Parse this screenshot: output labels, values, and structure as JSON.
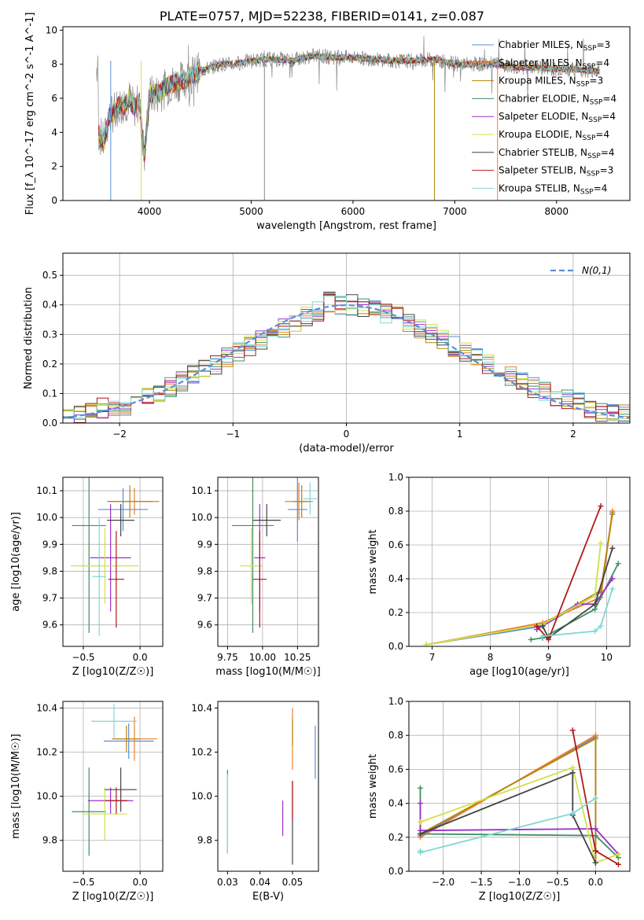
{
  "title": "PLATE=0757, MJD=52238, FIBERID=0141, z=0.087",
  "models": [
    {
      "name": "Chabrier MILES, N_SSP=3",
      "color": "#5b8dd6"
    },
    {
      "name": "Salpeter MILES, N_SSP=4",
      "color": "#ee7f2d"
    },
    {
      "name": "Kroupa MILES, N_SSP=3",
      "color": "#b8860b"
    },
    {
      "name": "Chabrier ELODIE, N_SSP=4",
      "color": "#3f8f62"
    },
    {
      "name": "Salpeter ELODIE, N_SSP=4",
      "color": "#9b30c9"
    },
    {
      "name": "Kroupa ELODIE, N_SSP=4",
      "color": "#d2e04a"
    },
    {
      "name": "Chabrier STELIB, N_SSP=4",
      "color": "#444444"
    },
    {
      "name": "Salpeter STELIB, N_SSP=3",
      "color": "#b01818"
    },
    {
      "name": "Kroupa STELIB, N_SSP=4",
      "color": "#7fd6d6"
    }
  ],
  "chart_data": [
    {
      "id": "spectrum",
      "type": "line",
      "xlabel": "wavelength [Angstrom, rest frame]",
      "ylabel": "Flux [f_λ 10^-17 erg cm^-2 s^-1 A^-1]",
      "xlim": [
        3150,
        8720
      ],
      "ylim": [
        0,
        10.2
      ],
      "xticks": [
        4000,
        5000,
        6000,
        7000,
        8000
      ],
      "yticks": [
        0,
        2,
        4,
        6,
        8,
        10
      ],
      "grid": false,
      "legend": "right",
      "x": [
        3500,
        3550,
        3600,
        3650,
        3700,
        3750,
        3800,
        3850,
        3900,
        3950,
        4000,
        4100,
        4200,
        4300,
        4400,
        4500,
        4600,
        4700,
        4800,
        4900,
        5000,
        5200,
        5400,
        5600,
        5800,
        6000,
        6200,
        6400,
        6600,
        6800,
        7000,
        7200,
        7400,
        7600,
        7800,
        8000,
        8200,
        8400
      ],
      "values": [
        4.0,
        3.4,
        4.8,
        5.2,
        5.6,
        5.5,
        6.0,
        5.4,
        5.8,
        2.5,
        6.2,
        6.3,
        6.8,
        7.0,
        7.3,
        7.6,
        7.8,
        8.0,
        8.0,
        8.1,
        8.2,
        8.3,
        8.2,
        8.5,
        8.4,
        8.4,
        8.3,
        8.2,
        8.2,
        8.3,
        8.0,
        8.0,
        8.0,
        7.8,
        7.8,
        7.7,
        7.7,
        7.6
      ]
    },
    {
      "id": "residuals",
      "type": "step",
      "xlabel": "(data-model)/error",
      "ylabel": "Normed distribution",
      "xlim": [
        -2.5,
        2.5
      ],
      "ylim": [
        0,
        0.575
      ],
      "xticks": [
        -2,
        -1,
        0,
        1,
        2
      ],
      "yticks": [
        0.0,
        0.1,
        0.2,
        0.3,
        0.4,
        0.5
      ],
      "grid": true,
      "legend": "top-right",
      "reference": {
        "name": "N(0,1)",
        "color": "#5b8dd6"
      },
      "bin_centers": [
        -2.45,
        -2.35,
        -2.25,
        -2.15,
        -2.05,
        -1.95,
        -1.85,
        -1.75,
        -1.65,
        -1.55,
        -1.45,
        -1.35,
        -1.25,
        -1.15,
        -1.05,
        -0.95,
        -0.85,
        -0.75,
        -0.65,
        -0.55,
        -0.45,
        -0.35,
        -0.25,
        -0.15,
        -0.05,
        0.05,
        0.15,
        0.25,
        0.35,
        0.45,
        0.55,
        0.65,
        0.75,
        0.85,
        0.95,
        1.05,
        1.15,
        1.25,
        1.35,
        1.45,
        1.55,
        1.65,
        1.75,
        1.85,
        1.95,
        2.05,
        2.15,
        2.25,
        2.35,
        2.45
      ],
      "values": [
        0.02,
        0.03,
        0.04,
        0.05,
        0.05,
        0.06,
        0.07,
        0.09,
        0.1,
        0.12,
        0.14,
        0.16,
        0.18,
        0.2,
        0.22,
        0.24,
        0.26,
        0.28,
        0.3,
        0.32,
        0.34,
        0.36,
        0.38,
        0.41,
        0.4,
        0.4,
        0.39,
        0.38,
        0.37,
        0.36,
        0.34,
        0.32,
        0.3,
        0.28,
        0.26,
        0.24,
        0.22,
        0.2,
        0.18,
        0.16,
        0.14,
        0.12,
        0.11,
        0.09,
        0.08,
        0.07,
        0.05,
        0.04,
        0.04,
        0.03
      ]
    },
    {
      "id": "z_age",
      "type": "errorbar",
      "xlabel": "Z [log10(Z/Z☉)]",
      "ylabel": "age [log10(age/yr)]",
      "xlim": [
        -0.68,
        0.2
      ],
      "ylim": [
        9.52,
        10.15
      ],
      "xticks": [
        -0.5,
        0.0
      ],
      "yticks": [
        9.6,
        9.7,
        9.8,
        9.9,
        10.0,
        10.1
      ],
      "grid": true,
      "points": [
        {
          "x": -0.15,
          "y": 10.03,
          "xerr": 0.22,
          "yerr": 0.08
        },
        {
          "x": -0.05,
          "y": 10.06,
          "xerr": 0.22,
          "yerr": 0.05
        },
        {
          "x": -0.09,
          "y": 10.06,
          "xerr": 0.2,
          "yerr": 0.06
        },
        {
          "x": -0.45,
          "y": 9.97,
          "xerr": 0.15,
          "yerr": 0.4
        },
        {
          "x": -0.26,
          "y": 9.85,
          "xerr": 0.18,
          "yerr": 0.2
        },
        {
          "x": -0.31,
          "y": 9.82,
          "xerr": 0.3,
          "yerr": 0.14
        },
        {
          "x": -0.17,
          "y": 9.99,
          "xerr": 0.12,
          "yerr": 0.06
        },
        {
          "x": -0.21,
          "y": 9.77,
          "xerr": 0.07,
          "yerr": 0.18
        },
        {
          "x": -0.36,
          "y": 9.78,
          "xerr": 0.06,
          "yerr": 0.22
        }
      ]
    },
    {
      "id": "mass_age",
      "type": "errorbar",
      "xlabel": "mass [log10(M/M☉)]",
      "ylabel": "",
      "xlim": [
        9.68,
        10.4
      ],
      "ylim": [
        9.52,
        10.15
      ],
      "xticks": [
        9.75,
        10.0,
        10.25
      ],
      "yticks": [
        9.6,
        9.7,
        9.8,
        9.9,
        10.0,
        10.1
      ],
      "grid": true,
      "points": [
        {
          "x": 10.25,
          "y": 10.03,
          "xerr": 0.07,
          "yerr": 0.12
        },
        {
          "x": 10.26,
          "y": 10.06,
          "xerr": 0.1,
          "yerr": 0.07
        },
        {
          "x": 10.28,
          "y": 10.06,
          "xerr": 0.06,
          "yerr": 0.06
        },
        {
          "x": 9.93,
          "y": 9.97,
          "xerr": 0.15,
          "yerr": 0.4
        },
        {
          "x": 9.98,
          "y": 9.85,
          "xerr": 0.04,
          "yerr": 0.2
        },
        {
          "x": 9.92,
          "y": 9.82,
          "xerr": 0.08,
          "yerr": 0.14
        },
        {
          "x": 10.03,
          "y": 9.99,
          "xerr": 0.1,
          "yerr": 0.06
        },
        {
          "x": 9.98,
          "y": 9.77,
          "xerr": 0.05,
          "yerr": 0.18
        },
        {
          "x": 10.34,
          "y": 10.07,
          "xerr": 0.05,
          "yerr": 0.06
        }
      ]
    },
    {
      "id": "age_weight",
      "type": "line",
      "xlabel": "age [log10(age/yr)]",
      "ylabel": "mass weight",
      "xlim": [
        6.6,
        10.4
      ],
      "ylim": [
        0,
        1
      ],
      "xticks": [
        7,
        8,
        9,
        10
      ],
      "yticks": [
        0.0,
        0.2,
        0.4,
        0.6,
        0.8,
        1.0
      ],
      "grid": true,
      "series": [
        {
          "x": [
            6.9,
            8.9,
            9.9,
            10.1
          ],
          "values": [
            0.01,
            0.12,
            0.32,
            0.79
          ]
        },
        {
          "x": [
            6.9,
            8.9,
            9.9,
            10.1
          ],
          "values": [
            0.01,
            0.14,
            0.29,
            0.8
          ]
        },
        {
          "x": [
            6.9,
            8.9,
            9.9,
            10.1
          ],
          "values": [
            0.01,
            0.13,
            0.33,
            0.78
          ]
        },
        {
          "x": [
            8.7,
            8.9,
            9.8,
            10.2
          ],
          "values": [
            0.04,
            0.05,
            0.22,
            0.49
          ]
        },
        {
          "x": [
            8.8,
            9.5,
            9.8,
            10.1
          ],
          "values": [
            0.1,
            0.25,
            0.25,
            0.4
          ]
        },
        {
          "x": [
            6.9,
            8.9,
            9.8,
            9.9
          ],
          "values": [
            0.01,
            0.13,
            0.3,
            0.61
          ]
        },
        {
          "x": [
            8.9,
            9.0,
            9.8,
            10.1
          ],
          "values": [
            0.12,
            0.05,
            0.25,
            0.58
          ]
        },
        {
          "x": [
            8.8,
            9.0,
            9.9
          ],
          "values": [
            0.12,
            0.04,
            0.83
          ]
        },
        {
          "x": [
            8.9,
            9.8,
            9.9,
            10.1
          ],
          "values": [
            0.06,
            0.09,
            0.12,
            0.34
          ]
        }
      ]
    },
    {
      "id": "z_mass",
      "type": "errorbar",
      "xlabel": "Z [log10(Z/Z☉)]",
      "ylabel": "mass [log10(M/M☉)]",
      "xlim": [
        -0.68,
        0.2
      ],
      "ylim": [
        9.66,
        10.43
      ],
      "xticks": [
        -0.5,
        0.0
      ],
      "yticks": [
        9.8,
        10.0,
        10.2,
        10.4
      ],
      "grid": true,
      "points": [
        {
          "x": -0.1,
          "y": 10.25,
          "xerr": 0.22,
          "yerr": 0.08
        },
        {
          "x": -0.05,
          "y": 10.26,
          "xerr": 0.2,
          "yerr": 0.1
        },
        {
          "x": -0.12,
          "y": 10.26,
          "xerr": 0.12,
          "yerr": 0.06
        },
        {
          "x": -0.45,
          "y": 9.93,
          "xerr": 0.15,
          "yerr": 0.2
        },
        {
          "x": -0.26,
          "y": 9.98,
          "xerr": 0.2,
          "yerr": 0.06
        },
        {
          "x": -0.31,
          "y": 9.92,
          "xerr": 0.2,
          "yerr": 0.12
        },
        {
          "x": -0.17,
          "y": 10.03,
          "xerr": 0.14,
          "yerr": 0.1
        },
        {
          "x": -0.21,
          "y": 9.98,
          "xerr": 0.1,
          "yerr": 0.06
        },
        {
          "x": -0.23,
          "y": 10.34,
          "xerr": 0.2,
          "yerr": 0.08
        }
      ]
    },
    {
      "id": "ebv_mass",
      "type": "errorbar",
      "xlabel": "E(B-V)",
      "ylabel": "",
      "xlim": [
        0.027,
        0.058
      ],
      "ylim": [
        9.66,
        10.43
      ],
      "xticks": [
        0.03,
        0.04,
        0.05
      ],
      "yticks": [
        9.8,
        10.0,
        10.2,
        10.4
      ],
      "grid": false,
      "points": [
        {
          "x": 0.057,
          "y": 10.2,
          "xerr": 0,
          "yerr": 0.12
        },
        {
          "x": 0.05,
          "y": 10.26,
          "xerr": 0,
          "yerr": 0.14
        },
        {
          "x": 0.05,
          "y": 10.29,
          "xerr": 0,
          "yerr": 0.06
        },
        {
          "x": 0.03,
          "y": 9.93,
          "xerr": 0,
          "yerr": 0.19
        },
        {
          "x": 0.047,
          "y": 9.9,
          "xerr": 0,
          "yerr": 0.08
        },
        {
          "x": 0.03,
          "y": 9.92,
          "xerr": 0,
          "yerr": 0.12
        },
        {
          "x": 0.05,
          "y": 9.88,
          "xerr": 0,
          "yerr": 0.19
        },
        {
          "x": 0.05,
          "y": 9.98,
          "xerr": 0,
          "yerr": 0.09
        },
        {
          "x": 0.03,
          "y": 9.92,
          "xerr": 0,
          "yerr": 0.18
        }
      ]
    },
    {
      "id": "z_weight",
      "type": "line",
      "xlabel": "Z [log10(Z/Z☉)]",
      "ylabel": "mass weight",
      "xlim": [
        -2.45,
        0.45
      ],
      "ylim": [
        0,
        1
      ],
      "xticks": [
        -2.0,
        -1.5,
        -1.0,
        -0.5,
        0.0
      ],
      "yticks": [
        0.0,
        0.2,
        0.4,
        0.6,
        0.8,
        1.0
      ],
      "grid": true,
      "series": [
        {
          "x": [
            -2.3,
            0.0,
            0.0
          ],
          "values": [
            0.21,
            0.79,
            0.05
          ]
        },
        {
          "x": [
            -2.3,
            0.0,
            0.0
          ],
          "values": [
            0.2,
            0.8,
            0.05
          ]
        },
        {
          "x": [
            -2.3,
            0.0,
            0.0
          ],
          "values": [
            0.22,
            0.78,
            0.05
          ]
        },
        {
          "x": [
            -2.3,
            -2.3,
            0.0,
            0.3
          ],
          "values": [
            0.49,
            0.22,
            0.21,
            0.08
          ]
        },
        {
          "x": [
            -2.3,
            -2.3,
            0.0,
            0.3
          ],
          "values": [
            0.4,
            0.24,
            0.25,
            0.1
          ]
        },
        {
          "x": [
            -2.3,
            -0.3,
            0.0,
            0.3
          ],
          "values": [
            0.29,
            0.61,
            0.05,
            0.1
          ]
        },
        {
          "x": [
            -2.3,
            -0.3,
            -0.3,
            0.0
          ],
          "values": [
            0.22,
            0.58,
            0.33,
            0.05
          ]
        },
        {
          "x": [
            -0.3,
            0.0,
            0.0,
            0.3
          ],
          "values": [
            0.83,
            0.12,
            0.12,
            0.04
          ]
        },
        {
          "x": [
            -2.3,
            -2.3,
            -0.3,
            0.0
          ],
          "values": [
            0.12,
            0.11,
            0.34,
            0.43
          ]
        }
      ]
    }
  ]
}
